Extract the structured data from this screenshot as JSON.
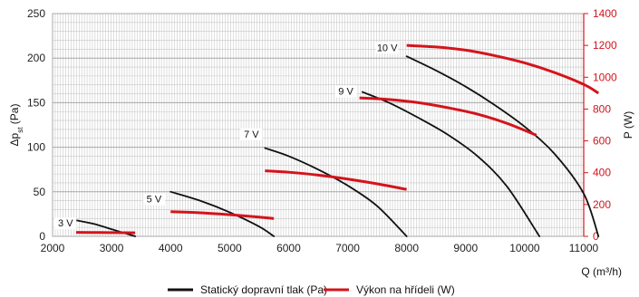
{
  "chart_data": {
    "type": "line",
    "title": "",
    "xlabel": "Q (m³/h)",
    "ylabel_left": "Δp_st (Pa)",
    "ylabel_right": "P (W)",
    "xlim": [
      2000,
      11000
    ],
    "xticks": [
      2000,
      3000,
      4000,
      5000,
      6000,
      7000,
      8000,
      9000,
      10000,
      11000
    ],
    "ylim_left": [
      0,
      250
    ],
    "yticks_left": [
      0,
      50,
      100,
      150,
      200,
      250
    ],
    "ylim_right": [
      0,
      1400
    ],
    "yticks_right": [
      0,
      200,
      400,
      600,
      800,
      1000,
      1200,
      1400
    ],
    "grid": true,
    "legend_position": "bottom",
    "colors": {
      "pressure": "#111111",
      "power": "#d4141c",
      "grid": "#c8c8c8",
      "right_axis": "#d4141c"
    },
    "legend": [
      {
        "label": "Statický dopravní tlak (Pa)",
        "color": "#111111"
      },
      {
        "label": "Výkon na hřídeli (W)",
        "color": "#d4141c"
      }
    ],
    "voltage_labels": [
      {
        "text": "3 V",
        "x": 2250,
        "y": 11
      },
      {
        "text": "5 V",
        "x": 3750,
        "y": 38
      },
      {
        "text": "7 V",
        "x": 5400,
        "y": 111
      },
      {
        "text": "9 V",
        "x": 7000,
        "y": 159
      },
      {
        "text": "10 V",
        "x": 7700,
        "y": 208
      }
    ],
    "pressure_series": [
      {
        "voltage": "3 V",
        "x": [
          2400,
          2700,
          3000,
          3200,
          3400
        ],
        "y": [
          18,
          14,
          8,
          4,
          0
        ]
      },
      {
        "voltage": "5 V",
        "x": [
          4000,
          4500,
          5000,
          5500,
          5750
        ],
        "y": [
          50,
          40,
          27,
          11,
          0
        ]
      },
      {
        "voltage": "7 V",
        "x": [
          5600,
          6000,
          6500,
          7000,
          7500,
          8000
        ],
        "y": [
          99,
          90,
          75,
          57,
          34,
          0
        ]
      },
      {
        "voltage": "9 V",
        "x": [
          7250,
          7700,
          8200,
          8700,
          9200,
          9700,
          10250
        ],
        "y": [
          162,
          150,
          133,
          114,
          90,
          56,
          0
        ]
      },
      {
        "voltage": "10 V",
        "x": [
          8000,
          8500,
          9000,
          9500,
          10000,
          10500,
          11000,
          11250
        ],
        "y": [
          202,
          186,
          168,
          147,
          123,
          93,
          48,
          0
        ]
      }
    ],
    "power_series": [
      {
        "voltage": "3 V",
        "x": [
          2400,
          2800,
          3200,
          3400
        ],
        "y": [
          25,
          24,
          23,
          22
        ]
      },
      {
        "voltage": "5 V",
        "x": [
          4000,
          4500,
          5000,
          5500,
          5750
        ],
        "y": [
          155,
          148,
          136,
          121,
          112
        ]
      },
      {
        "voltage": "7 V",
        "x": [
          5600,
          6000,
          6500,
          7000,
          7500,
          8000
        ],
        "y": [
          412,
          403,
          385,
          360,
          330,
          295
        ]
      },
      {
        "voltage": "9 V",
        "x": [
          7200,
          7700,
          8200,
          8700,
          9200,
          9700,
          10200
        ],
        "y": [
          870,
          860,
          840,
          808,
          768,
          710,
          635
        ]
      },
      {
        "voltage": "10 V",
        "x": [
          8000,
          8500,
          9000,
          9500,
          10000,
          10500,
          11000,
          11250
        ],
        "y": [
          1200,
          1190,
          1170,
          1135,
          1090,
          1030,
          955,
          900
        ]
      }
    ]
  }
}
